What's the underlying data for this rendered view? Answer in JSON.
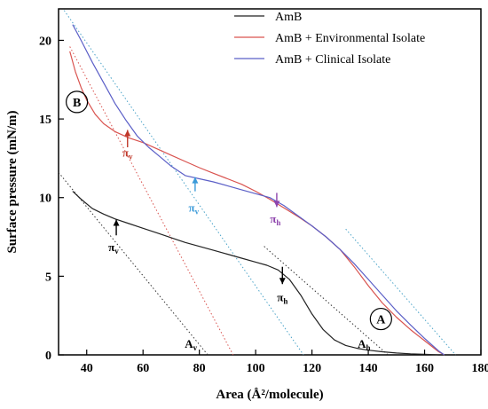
{
  "chart_data": {
    "type": "line",
    "title": "",
    "xlabel": "Area (Å²/molecule)",
    "ylabel": "Surface pressure (mN/m)",
    "xlim": [
      30,
      180
    ],
    "ylim": [
      0,
      22
    ],
    "xticks": [
      40,
      60,
      80,
      100,
      120,
      140,
      160,
      180
    ],
    "yticks": [
      0,
      5,
      10,
      15,
      20
    ],
    "grid": false,
    "legend_position": "top-right",
    "series": [
      {
        "name": "AmB",
        "color": "#222222",
        "points": [
          [
            35,
            10.4
          ],
          [
            38,
            9.9
          ],
          [
            42,
            9.3
          ],
          [
            46,
            8.95
          ],
          [
            50,
            8.65
          ],
          [
            55,
            8.35
          ],
          [
            60,
            8.05
          ],
          [
            65,
            7.75
          ],
          [
            70,
            7.45
          ],
          [
            75,
            7.15
          ],
          [
            80,
            6.9
          ],
          [
            85,
            6.65
          ],
          [
            90,
            6.4
          ],
          [
            95,
            6.15
          ],
          [
            100,
            5.9
          ],
          [
            104,
            5.7
          ],
          [
            108,
            5.4
          ],
          [
            112,
            4.8
          ],
          [
            116,
            3.8
          ],
          [
            120,
            2.6
          ],
          [
            124,
            1.6
          ],
          [
            128,
            0.95
          ],
          [
            132,
            0.6
          ],
          [
            136,
            0.42
          ],
          [
            140,
            0.3
          ],
          [
            145,
            0.2
          ],
          [
            150,
            0.12
          ],
          [
            155,
            0.07
          ],
          [
            160,
            0.04
          ],
          [
            165,
            0.0
          ]
        ]
      },
      {
        "name": "AmB + Environmental Isolate",
        "color": "#d9534f",
        "points": [
          [
            34,
            19.3
          ],
          [
            36,
            18.0
          ],
          [
            38,
            17.0
          ],
          [
            40,
            16.2
          ],
          [
            43,
            15.3
          ],
          [
            46,
            14.7
          ],
          [
            50,
            14.2
          ],
          [
            55,
            13.8
          ],
          [
            60,
            13.5
          ],
          [
            65,
            13.1
          ],
          [
            70,
            12.7
          ],
          [
            75,
            12.3
          ],
          [
            80,
            11.9
          ],
          [
            85,
            11.55
          ],
          [
            90,
            11.2
          ],
          [
            95,
            10.85
          ],
          [
            100,
            10.4
          ],
          [
            105,
            9.9
          ],
          [
            110,
            9.35
          ],
          [
            115,
            8.8
          ],
          [
            120,
            8.2
          ],
          [
            125,
            7.5
          ],
          [
            130,
            6.7
          ],
          [
            135,
            5.6
          ],
          [
            140,
            4.4
          ],
          [
            145,
            3.3
          ],
          [
            150,
            2.4
          ],
          [
            155,
            1.6
          ],
          [
            160,
            0.9
          ],
          [
            165,
            0.2
          ],
          [
            167,
            0.0
          ]
        ]
      },
      {
        "name": "AmB + Clinical Isolate",
        "color": "#5b5fc7",
        "points": [
          [
            35,
            21.0
          ],
          [
            38,
            20.0
          ],
          [
            42,
            18.6
          ],
          [
            46,
            17.3
          ],
          [
            50,
            16.0
          ],
          [
            54,
            14.9
          ],
          [
            58,
            13.9
          ],
          [
            62,
            13.2
          ],
          [
            66,
            12.6
          ],
          [
            70,
            12.0
          ],
          [
            75,
            11.4
          ],
          [
            80,
            11.2
          ],
          [
            85,
            11.0
          ],
          [
            90,
            10.75
          ],
          [
            95,
            10.5
          ],
          [
            100,
            10.25
          ],
          [
            105,
            10.0
          ],
          [
            110,
            9.5
          ],
          [
            115,
            8.85
          ],
          [
            120,
            8.2
          ],
          [
            125,
            7.5
          ],
          [
            130,
            6.7
          ],
          [
            135,
            5.8
          ],
          [
            140,
            4.8
          ],
          [
            145,
            3.8
          ],
          [
            150,
            2.8
          ],
          [
            155,
            1.9
          ],
          [
            160,
            1.05
          ],
          [
            165,
            0.25
          ],
          [
            167,
            0.0
          ]
        ]
      }
    ],
    "extrapolation_lines": [
      {
        "color": "#333333",
        "from": [
          30,
          11.6
        ],
        "to": [
          83,
          0
        ]
      },
      {
        "color": "#d9534f",
        "from": [
          34,
          19.6
        ],
        "to": [
          92,
          0
        ]
      },
      {
        "color": "#4aa3c8",
        "from": [
          32,
          21.9
        ],
        "to": [
          117,
          0
        ]
      },
      {
        "color": "#333333",
        "from": [
          103,
          6.9
        ],
        "to": [
          147,
          0
        ]
      },
      {
        "color": "#4aa3c8",
        "from": [
          132,
          8.0
        ],
        "to": [
          171,
          0
        ]
      }
    ],
    "annotations": [
      {
        "text": "A",
        "style": "circled",
        "x": 144.5,
        "y": 2.0
      },
      {
        "text": "B",
        "style": "circled",
        "x": 36.5,
        "y": 15.8
      },
      {
        "text": "π",
        "sub": "v",
        "color": "#c0392b",
        "x": 54.5,
        "y": 12.6,
        "arrow": "up",
        "arrow_x": 54.5,
        "arrow_from": 13.2,
        "arrow_to": 14.3
      },
      {
        "text": "π",
        "sub": "v",
        "color": "#3a9ad9",
        "x": 78.0,
        "y": 9.1,
        "arrow": "up",
        "arrow_x": 78.5,
        "arrow_from": 10.4,
        "arrow_to": 11.3
      },
      {
        "text": "π",
        "sub": "h",
        "color": "#8e44ad",
        "x": 107.0,
        "y": 8.4,
        "arrow": "down",
        "arrow_x": 107.5,
        "arrow_from": 10.3,
        "arrow_to": 9.4
      },
      {
        "text": "π",
        "sub": "v",
        "color": "#000000",
        "x": 49.5,
        "y": 6.6,
        "arrow": "up",
        "arrow_x": 50.5,
        "arrow_from": 7.6,
        "arrow_to": 8.6
      },
      {
        "text": "π",
        "sub": "h",
        "color": "#000000",
        "x": 109.5,
        "y": 3.4,
        "arrow": "down",
        "arrow_x": 109.5,
        "arrow_from": 5.6,
        "arrow_to": 4.5
      },
      {
        "text": "A",
        "sub": "v",
        "color": "#000000",
        "x": 77.0,
        "y": 0.45
      },
      {
        "text": "A",
        "sub": "h",
        "color": "#000000",
        "x": 138.5,
        "y": 0.45
      }
    ]
  }
}
